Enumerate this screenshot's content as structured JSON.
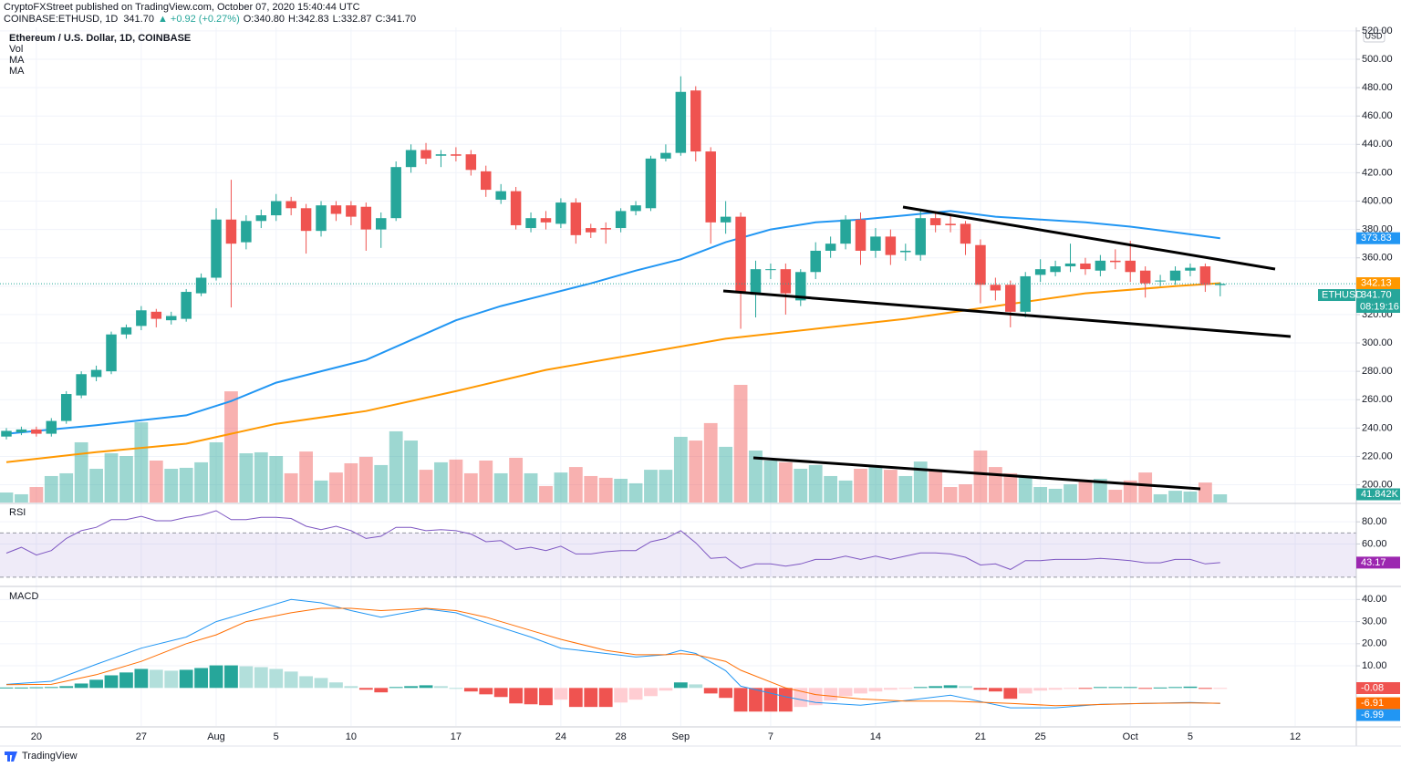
{
  "header": {
    "published": "CryptoFXStreet published on TradingView.com, October 07, 2020 15:40:44 UTC",
    "symbol": "COINBASE:ETHUSD, 1D",
    "last": "341.70",
    "change": "▲ +0.92 (+0.27%)",
    "ohlc": [
      "O:340.80",
      "H:342.83",
      "L:332.87",
      "C:341.70"
    ],
    "brand": "TradingView",
    "currency": "USD"
  },
  "chart_data": {
    "type": "candlestick",
    "title": "Ethereum / U.S. Dollar, 1D, COINBASE",
    "grid": true,
    "up_color": "#26a69a",
    "down_color": "#ef5350",
    "xlim": [
      -0.426,
      90.08
    ],
    "xticks": [
      {
        "value": 2,
        "label": "20"
      },
      {
        "value": 9,
        "label": "27"
      },
      {
        "value": 14,
        "label": "Aug"
      },
      {
        "value": 18,
        "label": "5"
      },
      {
        "value": 23,
        "label": "10"
      },
      {
        "value": 30,
        "label": "17"
      },
      {
        "value": 37,
        "label": "24"
      },
      {
        "value": 41,
        "label": "28"
      },
      {
        "value": 45,
        "label": "Sep"
      },
      {
        "value": 51,
        "label": "7"
      },
      {
        "value": 58,
        "label": "14"
      },
      {
        "value": 65,
        "label": "21"
      },
      {
        "value": 69,
        "label": "25"
      },
      {
        "value": 75,
        "label": "Oct"
      },
      {
        "value": 79,
        "label": "5"
      },
      {
        "value": 86,
        "label": "12"
      }
    ],
    "ylim": [
      187.5,
      522.5
    ],
    "yticks": [
      {
        "value": 200,
        "label": "200.00"
      },
      {
        "value": 220,
        "label": "220.00"
      },
      {
        "value": 240,
        "label": "240.00"
      },
      {
        "value": 260,
        "label": "260.00"
      },
      {
        "value": 280,
        "label": "280.00"
      },
      {
        "value": 300,
        "label": "300.00"
      },
      {
        "value": 320,
        "label": "320.00"
      },
      {
        "value": 340,
        "label": "340.00"
      },
      {
        "value": 360,
        "label": "360.00"
      },
      {
        "value": 380,
        "label": "380.00"
      },
      {
        "value": 400,
        "label": "400.00"
      },
      {
        "value": 420,
        "label": "420.00"
      },
      {
        "value": 440,
        "label": "440.00"
      },
      {
        "value": 460,
        "label": "460.00"
      },
      {
        "value": 480,
        "label": "480.00"
      },
      {
        "value": 500,
        "label": "500.00"
      },
      {
        "value": 520,
        "label": "520.00"
      }
    ],
    "open": [
      234,
      237,
      239,
      236,
      245,
      263,
      276,
      280,
      306,
      312,
      322,
      316,
      317,
      335,
      346,
      387,
      371,
      386,
      390,
      400,
      395,
      379,
      397,
      397,
      396,
      380,
      388,
      424,
      436,
      432,
      433,
      433,
      421,
      401,
      407,
      381,
      388,
      384,
      399,
      381,
      381,
      381,
      393,
      395,
      430,
      434,
      478,
      435,
      385,
      389,
      334,
      352,
      352,
      330,
      350,
      365,
      370,
      387,
      365,
      375,
      364,
      362,
      388,
      384,
      384,
      369,
      341,
      341,
      322,
      348,
      350,
      354,
      356,
      351,
      358,
      358,
      351,
      344,
      344,
      351,
      354,
      340.8
    ],
    "close": [
      238,
      239,
      236,
      245,
      264,
      278,
      281,
      306,
      311,
      323,
      317,
      319,
      336,
      346,
      387,
      370,
      386,
      390,
      400,
      395,
      379,
      397,
      391,
      389,
      380,
      388,
      424,
      436,
      430,
      433,
      432,
      422,
      408,
      407,
      383,
      388,
      385,
      399,
      376,
      378,
      380,
      393,
      397,
      430,
      434,
      477,
      435,
      385,
      389,
      336,
      352,
      352,
      335,
      350,
      365,
      370,
      387,
      365,
      375,
      362,
      365,
      388,
      383,
      383,
      370,
      341,
      337,
      322,
      347,
      352,
      354,
      356,
      352,
      358,
      357,
      350,
      342,
      344,
      351,
      353,
      341,
      341.7
    ],
    "high": [
      240,
      241,
      241,
      247,
      266,
      280,
      284,
      308,
      313,
      326,
      324,
      322,
      338,
      349,
      395,
      415,
      390,
      394,
      405,
      403,
      398,
      400,
      400,
      400,
      399,
      392,
      428,
      440,
      441,
      436,
      438,
      436,
      425,
      412,
      410,
      392,
      393,
      402,
      402,
      384,
      385,
      395,
      400,
      432,
      440,
      488,
      481,
      438,
      400,
      392,
      358,
      356,
      356,
      352,
      371,
      375,
      390,
      392,
      381,
      380,
      370,
      393,
      392,
      390,
      386,
      373,
      346,
      344,
      350,
      359,
      358,
      370,
      360,
      362,
      366,
      372,
      354,
      348,
      354,
      356,
      356,
      342.83
    ],
    "low": [
      232,
      235,
      234,
      234,
      243,
      261,
      273,
      278,
      303,
      309,
      311,
      313,
      315,
      333,
      344,
      325,
      366,
      381,
      386,
      390,
      363,
      375,
      386,
      383,
      365,
      367,
      386,
      420,
      426,
      424,
      428,
      418,
      403,
      398,
      380,
      378,
      380,
      381,
      370,
      374,
      370,
      378,
      390,
      393,
      428,
      432,
      428,
      370,
      377,
      310,
      318,
      345,
      320,
      326,
      345,
      360,
      366,
      355,
      360,
      355,
      358,
      358,
      378,
      378,
      362,
      328,
      330,
      311,
      318,
      343,
      347,
      350,
      348,
      347,
      352,
      343,
      332,
      340,
      341,
      347,
      336,
      332.87
    ],
    "series": [
      {
        "name": "MA",
        "color": "#2196f3",
        "x": [
          0,
          6,
          12,
          15,
          18,
          21,
          24,
          27,
          30,
          33,
          36,
          39,
          42,
          45,
          48,
          51,
          54,
          57,
          60,
          63,
          66,
          69,
          72,
          75,
          78,
          81
        ],
        "values": [
          236,
          242,
          249,
          259,
          272,
          280,
          288,
          302,
          316,
          326,
          334,
          342,
          351,
          359,
          371,
          380,
          385,
          387,
          390,
          393,
          389,
          387,
          385,
          382,
          378,
          373.83
        ]
      },
      {
        "name": "MA",
        "color": "#ff9800",
        "x": [
          0,
          6,
          12,
          15,
          18,
          24,
          30,
          36,
          42,
          48,
          54,
          60,
          66,
          72,
          78,
          81
        ],
        "values": [
          216,
          223,
          229,
          236,
          243,
          252,
          266,
          281,
          292,
          303,
          310,
          317,
          326,
          335,
          340,
          342.13
        ]
      }
    ],
    "price_tags": [
      {
        "value": 373.83,
        "label": "373.83",
        "color": "#2196f3"
      },
      {
        "value": 342.13,
        "label": "342.13",
        "color": "#ff9800"
      },
      {
        "value": 341.7,
        "label": "341.70",
        "color": "#26a69a",
        "name": "ETHUSD",
        "countdown": "08:19:16"
      }
    ],
    "volume": {
      "name": "Vol",
      "ylim": [
        0,
        2423
      ],
      "values": [
        51,
        42,
        79,
        135,
        149,
        307,
        172,
        251,
        237,
        409,
        214,
        172,
        177,
        205,
        307,
        567,
        251,
        256,
        237,
        149,
        260,
        112,
        153,
        200,
        233,
        191,
        363,
        316,
        167,
        205,
        219,
        149,
        214,
        149,
        228,
        149,
        84,
        153,
        181,
        135,
        126,
        121,
        98,
        167,
        167,
        335,
        316,
        405,
        284,
        600,
        265,
        214,
        205,
        172,
        191,
        135,
        112,
        172,
        181,
        167,
        135,
        209,
        163,
        79,
        93,
        265,
        181,
        149,
        135,
        79,
        70,
        93,
        112,
        121,
        65,
        112,
        153,
        42,
        60,
        56,
        102,
        41.842
      ],
      "tag": {
        "value": 41.842,
        "label": "41.842K"
      }
    },
    "rsi": {
      "name": "RSI",
      "color": "#7e57c2",
      "ylim": [
        23.3,
        95.8
      ],
      "yticks": [
        {
          "value": 80,
          "label": "80.00"
        },
        {
          "value": 60,
          "label": "60.00"
        }
      ],
      "band": [
        30,
        70
      ],
      "values": [
        51.7,
        57,
        50,
        54,
        65,
        72,
        75,
        82,
        82,
        85,
        81,
        81,
        84,
        86,
        90,
        82,
        82,
        84,
        84,
        83,
        76,
        73,
        76,
        72,
        65,
        67,
        75,
        75,
        72,
        73,
        72,
        69,
        62,
        63,
        55,
        57,
        54,
        58,
        51,
        51,
        53,
        54,
        54,
        62,
        65,
        72,
        61,
        47,
        48,
        38,
        42,
        42,
        40,
        42,
        46,
        46,
        49,
        46,
        49,
        46,
        49,
        52,
        52,
        51,
        48,
        41,
        42,
        37,
        45,
        45,
        46,
        46,
        46,
        47,
        46,
        45,
        43,
        43,
        46,
        46,
        42,
        43.17
      ],
      "tag": {
        "value": 43.17,
        "label": "43.17",
        "color": "#9c27b0"
      }
    },
    "macd": {
      "name": "MACD",
      "ylim": [
        -17.2,
        45.5
      ],
      "yticks": [
        {
          "value": 10,
          "label": "10.00"
        },
        {
          "value": 20,
          "label": "20.00"
        },
        {
          "value": 30,
          "label": "30.00"
        },
        {
          "value": 40,
          "label": "40.00"
        }
      ],
      "histogram": [
        0.2,
        0.2,
        0.3,
        0.4,
        0.8,
        2,
        3.7,
        5.7,
        7,
        8.6,
        8.2,
        7.8,
        8.2,
        9,
        10.2,
        10.2,
        9.8,
        9.4,
        8.6,
        7.4,
        5.3,
        4.5,
        2.5,
        0.8,
        -0.8,
        -2,
        0.4,
        0.8,
        1.2,
        0.8,
        0,
        -1.6,
        -2.9,
        -4.1,
        -7,
        -7.4,
        -7.8,
        -5.3,
        -8.6,
        -8.6,
        -8.6,
        -6.6,
        -5.3,
        -3.7,
        -1.2,
        2.5,
        1.6,
        -2.5,
        -4.5,
        -10.7,
        -10.7,
        -10.7,
        -10.7,
        -8.6,
        -7.8,
        -5.7,
        -3.7,
        -2.5,
        -1.6,
        -0.8,
        -0.4,
        0.4,
        0.8,
        1.2,
        0.8,
        -0.8,
        -1.6,
        -4.9,
        -2.5,
        -1.2,
        -0.8,
        -0.4,
        -0.4,
        0.4,
        0.4,
        0.4,
        -0.4,
        0.2,
        0.4,
        0.6,
        -0.3,
        -0.08
      ],
      "lines": [
        {
          "color": "#2196f3",
          "x": [
            0,
            3,
            6,
            9,
            12,
            14,
            16,
            19,
            21,
            23,
            25,
            28,
            30,
            32,
            35,
            37,
            40,
            42,
            44,
            45,
            46,
            48,
            49,
            52,
            54,
            57,
            60,
            63,
            67,
            70,
            73,
            76,
            79,
            81
          ],
          "values": [
            1.6,
            3,
            10.7,
            18,
            23,
            30,
            34,
            40,
            38.5,
            35,
            32,
            35.7,
            34,
            29.5,
            23,
            18,
            15.6,
            14,
            15,
            17,
            15.6,
            7.8,
            0.8,
            -4,
            -6.6,
            -7.8,
            -5.7,
            -3.3,
            -9,
            -9,
            -7.4,
            -7,
            -6.6,
            -6.99
          ]
        },
        {
          "color": "#ff6d00",
          "x": [
            0,
            3,
            6,
            9,
            12,
            14,
            16,
            19,
            21,
            23,
            25,
            28,
            30,
            32,
            35,
            37,
            40,
            42,
            44,
            45,
            46,
            48,
            49,
            52,
            54,
            57,
            60,
            63,
            67,
            70,
            73,
            76,
            79,
            81
          ],
          "values": [
            1.5,
            1.6,
            6,
            12,
            20,
            24,
            30,
            34,
            36,
            36,
            35,
            36,
            35,
            32,
            26,
            22,
            17,
            15,
            15,
            15.5,
            15,
            12,
            8,
            0,
            -3,
            -5,
            -6,
            -6,
            -7,
            -8,
            -7.5,
            -7,
            -6.8,
            -6.91
          ]
        }
      ],
      "tags": [
        {
          "value": -0.08,
          "label": "-0.08",
          "color": "#ef5350"
        },
        {
          "value": -6.91,
          "label": "-6.91",
          "color": "#ff6d00"
        },
        {
          "value": -6.99,
          "label": "-6.99",
          "color": "#2196f3"
        }
      ]
    }
  }
}
